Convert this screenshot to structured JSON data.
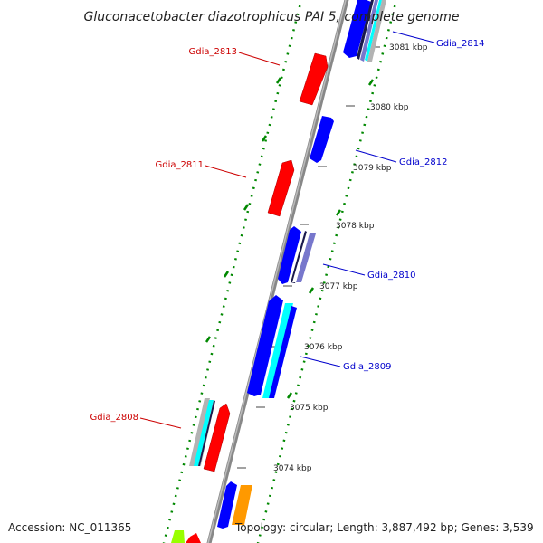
{
  "title": "Gluconacetobacter diazotrophicus PAI 5, complete genome",
  "accession": "Accession: NC_011365",
  "topology": "Topology: circular; Length: 3,887,492 bp; Genes: 3,539",
  "colors": {
    "forward": "#ff0000",
    "reverse": "#0000ff",
    "cyan": "#00ffff",
    "gray": "#b3b3b3",
    "dark": "#1a1a4d",
    "slate": "#7777cc",
    "orange": "#ff9900",
    "lime": "#99ff00",
    "backbone": "#888888",
    "gc": "#008800",
    "label_forward": "#cc0000",
    "label_reverse": "#0000cc"
  },
  "scale_labels": [
    "3081 kbp",
    "3080 kbp",
    "3079 kbp",
    "3078 kbp",
    "3077 kbp",
    "3076 kbp",
    "3075 kbp",
    "3074 kbp"
  ],
  "gene_labels": {
    "forward": [
      "Gdia_2813",
      "Gdia_2811",
      "Gdia_2808"
    ],
    "reverse": [
      "Gdia_2814",
      "Gdia_2812",
      "Gdia_2810",
      "Gdia_2809"
    ]
  }
}
